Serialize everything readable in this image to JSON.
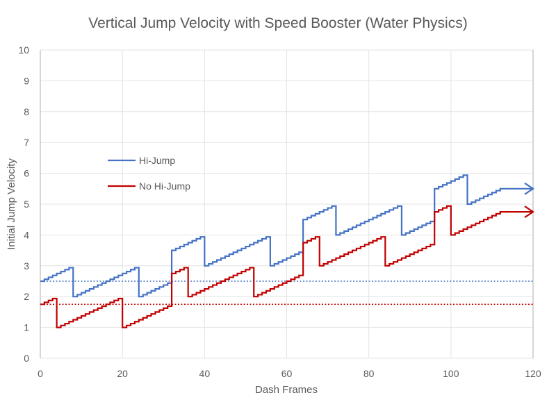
{
  "chart_data": {
    "type": "line",
    "title": "Vertical Jump Velocity with Speed Booster (Water Physics)",
    "xlabel": "Dash Frames",
    "ylabel": "Initial Jump Velocity",
    "xlim": [
      0,
      120
    ],
    "ylim": [
      0,
      10
    ],
    "xticks": [
      0,
      20,
      40,
      60,
      80,
      100,
      120
    ],
    "yticks": [
      0,
      1,
      2,
      3,
      4,
      5,
      6,
      7,
      8,
      9,
      10
    ],
    "grid": true,
    "legend_position": "upper-left-inside",
    "step_increment_per_frame": 0.0625,
    "series": [
      {
        "name": "Hi-Jump",
        "color": "#4472C4",
        "reference_line": 2.5,
        "segments": [
          {
            "from": 0,
            "to": 8,
            "start": 2.5
          },
          {
            "from": 8,
            "to": 24,
            "start": 2.0
          },
          {
            "from": 24,
            "to": 32,
            "start": 2.0
          },
          {
            "from": 32,
            "to": 40,
            "start": 3.5
          },
          {
            "from": 40,
            "to": 56,
            "start": 3.0
          },
          {
            "from": 56,
            "to": 64,
            "start": 3.0
          },
          {
            "from": 64,
            "to": 72,
            "start": 4.5
          },
          {
            "from": 72,
            "to": 88,
            "start": 4.0
          },
          {
            "from": 88,
            "to": 96,
            "start": 4.0
          },
          {
            "from": 96,
            "to": 104,
            "start": 5.5
          },
          {
            "from": 104,
            "to": 112,
            "start": 5.0
          }
        ],
        "final": {
          "from": 112,
          "to": 120,
          "value": 5.5,
          "arrow": true
        }
      },
      {
        "name": "No Hi-Jump",
        "color": "#C00000",
        "reference_line": 1.75,
        "segments": [
          {
            "from": 0,
            "to": 4,
            "start": 1.75
          },
          {
            "from": 4,
            "to": 20,
            "start": 1.0
          },
          {
            "from": 20,
            "to": 32,
            "start": 1.0
          },
          {
            "from": 32,
            "to": 36,
            "start": 2.75
          },
          {
            "from": 36,
            "to": 52,
            "start": 2.0
          },
          {
            "from": 52,
            "to": 64,
            "start": 2.0
          },
          {
            "from": 64,
            "to": 68,
            "start": 3.75
          },
          {
            "from": 68,
            "to": 84,
            "start": 3.0
          },
          {
            "from": 84,
            "to": 96,
            "start": 3.0
          },
          {
            "from": 96,
            "to": 100,
            "start": 4.75
          },
          {
            "from": 100,
            "to": 112,
            "start": 4.0
          }
        ],
        "final": {
          "from": 112,
          "to": 120,
          "value": 4.75,
          "arrow": true
        }
      }
    ]
  }
}
